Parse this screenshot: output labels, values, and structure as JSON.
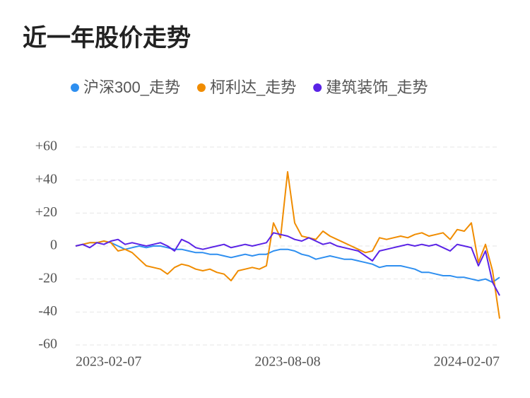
{
  "chart_data": {
    "type": "line",
    "title": "近一年股价走势",
    "categories": [
      "2023-02-07",
      null,
      null,
      null,
      null,
      null,
      null,
      null,
      null,
      null,
      null,
      null,
      null,
      null,
      null,
      null,
      null,
      null,
      null,
      null,
      null,
      null,
      null,
      null,
      null,
      null,
      null,
      null,
      null,
      null,
      "2023-08-08",
      null,
      null,
      null,
      null,
      null,
      null,
      null,
      null,
      null,
      null,
      null,
      null,
      null,
      null,
      null,
      null,
      null,
      null,
      null,
      null,
      null,
      null,
      null,
      null,
      null,
      null,
      null,
      null,
      null,
      "2024-02-07"
    ],
    "series": [
      {
        "name": "沪深300_走势",
        "color": "#2e8ff0",
        "values": [
          0,
          1,
          2,
          2,
          3,
          2,
          0,
          -2,
          -1,
          0,
          -1,
          0,
          0,
          -1,
          -2,
          -2,
          -3,
          -4,
          -4,
          -5,
          -5,
          -6,
          -7,
          -6,
          -5,
          -6,
          -5,
          -5,
          -3,
          -2,
          -2,
          -3,
          -5,
          -6,
          -8,
          -7,
          -6,
          -7,
          -8,
          -8,
          -9,
          -10,
          -11,
          -13,
          -12,
          -12,
          -12,
          -13,
          -14,
          -16,
          -16,
          -17,
          -18,
          -18,
          -19,
          -19,
          -20,
          -21,
          -20,
          -22,
          -19
        ]
      },
      {
        "name": "柯利达_走势",
        "color": "#f08c00",
        "values": [
          0,
          1,
          2,
          2,
          3,
          2,
          -3,
          -2,
          -4,
          -8,
          -12,
          -13,
          -14,
          -17,
          -13,
          -11,
          -12,
          -14,
          -15,
          -14,
          -16,
          -17,
          -21,
          -15,
          -14,
          -13,
          -14,
          -12,
          14,
          5,
          45,
          14,
          6,
          5,
          4,
          9,
          6,
          4,
          2,
          0,
          -2,
          -4,
          -3,
          5,
          4,
          5,
          6,
          5,
          7,
          8,
          6,
          7,
          8,
          4,
          10,
          9,
          14,
          -10,
          1,
          -15,
          -44
        ]
      },
      {
        "name": "建筑装饰_走势",
        "color": "#5a23e6",
        "values": [
          0,
          1,
          -1,
          2,
          1,
          3,
          4,
          1,
          2,
          1,
          0,
          1,
          2,
          0,
          -3,
          4,
          2,
          -1,
          -2,
          -1,
          0,
          1,
          -1,
          0,
          1,
          0,
          1,
          2,
          8,
          7,
          6,
          4,
          3,
          5,
          3,
          1,
          2,
          0,
          -1,
          -2,
          -3,
          -6,
          -9,
          -3,
          -2,
          -1,
          0,
          1,
          0,
          1,
          0,
          1,
          -1,
          -3,
          1,
          0,
          -1,
          -12,
          -3,
          -22,
          -30
        ]
      }
    ],
    "ylim": [
      -60,
      60
    ],
    "yticks": [
      {
        "value": 60,
        "label": "+60"
      },
      {
        "value": 40,
        "label": "+40"
      },
      {
        "value": 20,
        "label": "+20"
      },
      0,
      -20,
      -40,
      -60
    ],
    "grid": true
  }
}
